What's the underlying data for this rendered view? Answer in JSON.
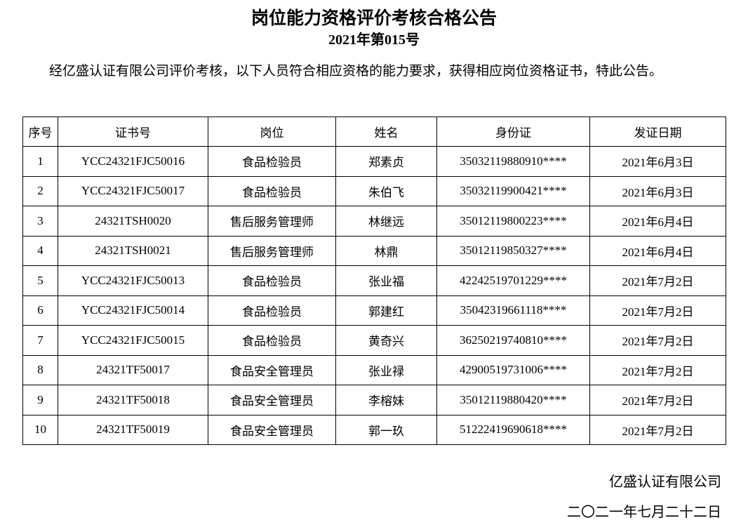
{
  "title": "岗位能力资格评价考核合格公告",
  "subtitle": "2021年第015号",
  "intro": "经亿盛认证有限公司评价考核，以下人员符合相应资格的能力要求，获得相应岗位资格证书，特此公告。",
  "table": {
    "headers": [
      "序号",
      "证书号",
      "岗位",
      "姓名",
      "身份证",
      "发证日期"
    ],
    "rows": [
      [
        "1",
        "YCC24321FJC50016",
        "食品检验员",
        "郑素贞",
        "35032119880910****",
        "2021年6月3日"
      ],
      [
        "2",
        "YCC24321FJC50017",
        "食品检验员",
        "朱伯飞",
        "35032119900421****",
        "2021年6月3日"
      ],
      [
        "3",
        "24321TSH0020",
        "售后服务管理师",
        "林继远",
        "35012119800223****",
        "2021年6月4日"
      ],
      [
        "4",
        "24321TSH0021",
        "售后服务管理师",
        "林鼎",
        "35012119850327****",
        "2021年6月4日"
      ],
      [
        "5",
        "YCC24321FJC50013",
        "食品检验员",
        "张业福",
        "42242519701229****",
        "2021年7月2日"
      ],
      [
        "6",
        "YCC24321FJC50014",
        "食品检验员",
        "郭建红",
        "35042319661118****",
        "2021年7月2日"
      ],
      [
        "7",
        "YCC24321FJC50015",
        "食品检验员",
        "黄奇兴",
        "36250219740810****",
        "2021年7月2日"
      ],
      [
        "8",
        "24321TF50017",
        "食品安全管理员",
        "张业禄",
        "42900519731006****",
        "2021年7月2日"
      ],
      [
        "9",
        "24321TF50018",
        "食品安全管理员",
        "李榕妹",
        "35012119880420****",
        "2021年7月2日"
      ],
      [
        "10",
        "24321TF50019",
        "食品安全管理员",
        "郭一玖",
        "51222419690618****",
        "2021年7月2日"
      ]
    ]
  },
  "footer": {
    "company": "亿盛认证有限公司",
    "date": "二〇二一年七月二十二日"
  }
}
